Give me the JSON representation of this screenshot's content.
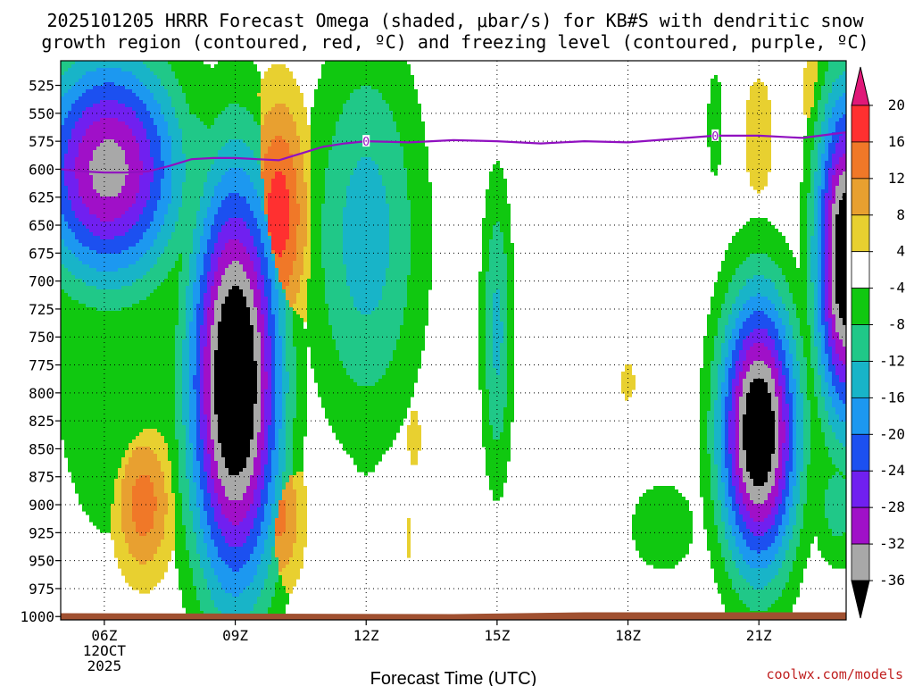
{
  "chart_data": {
    "type": "heatmap",
    "title_lines": [
      "2025101205 HRRR Forecast Omega (shaded, μbar/s) for KB#S with dendritic snow",
      "growth region (contoured, red, ºC) and freezing level (contoured, purple, ºC)"
    ],
    "xlabel": "Forecast Time (UTC)",
    "ylabel": "",
    "credit": "coolwx.com/models",
    "x_range_hours": [
      5,
      23
    ],
    "y_range_mb": [
      503,
      1003
    ],
    "y_ticks": [
      525,
      550,
      575,
      600,
      625,
      650,
      675,
      700,
      725,
      750,
      775,
      800,
      825,
      850,
      875,
      900,
      925,
      950,
      975,
      1000
    ],
    "x_ticks": [
      {
        "hour": 6,
        "label": "06Z",
        "sub1": "12OCT",
        "sub2": "2025"
      },
      {
        "hour": 9,
        "label": "09Z",
        "sub1": "",
        "sub2": ""
      },
      {
        "hour": 12,
        "label": "12Z",
        "sub1": "",
        "sub2": ""
      },
      {
        "hour": 15,
        "label": "15Z",
        "sub1": "",
        "sub2": ""
      },
      {
        "hour": 18,
        "label": "18Z",
        "sub1": "",
        "sub2": ""
      },
      {
        "hour": 21,
        "label": "21Z",
        "sub1": "",
        "sub2": ""
      }
    ],
    "colorbar": {
      "labels": [
        "20",
        "16",
        "12",
        "8",
        "4",
        "-4",
        "-8",
        "-12",
        "-16",
        "-20",
        "-24",
        "-28",
        "-32",
        "-36"
      ],
      "bins": [
        {
          "upper": 20,
          "lower": 16,
          "color": "#ff3030"
        },
        {
          "upper": 16,
          "lower": 12,
          "color": "#f07828"
        },
        {
          "upper": 12,
          "lower": 8,
          "color": "#e8a030"
        },
        {
          "upper": 8,
          "lower": 4,
          "color": "#e8d030"
        },
        {
          "upper": 4,
          "lower": -4,
          "color": "#ffffff"
        },
        {
          "upper": -4,
          "lower": -8,
          "color": "#10c810"
        },
        {
          "upper": -8,
          "lower": -12,
          "color": "#20c888"
        },
        {
          "upper": -12,
          "lower": -16,
          "color": "#18b4c8"
        },
        {
          "upper": -16,
          "lower": -20,
          "color": "#1c98f0"
        },
        {
          "upper": -20,
          "lower": -24,
          "color": "#1c50f0"
        },
        {
          "upper": -24,
          "lower": -28,
          "color": "#7020f0"
        },
        {
          "upper": -28,
          "lower": -32,
          "color": "#a010c8"
        },
        {
          "upper": -32,
          "lower": -36,
          "color": "#a8a8a8"
        }
      ],
      "top_arrow_color": "#e01878",
      "bottom_arrow_color": "#000000"
    },
    "omega_features": [
      {
        "time": 6.1,
        "pres": 600,
        "dt": 1.7,
        "dp": 105,
        "peak": -34,
        "kind": "ascent"
      },
      {
        "time": 7.5,
        "pres": 590,
        "dt": 2.3,
        "dp": 95,
        "peak": -10,
        "kind": "ascent"
      },
      {
        "time": 9.0,
        "pres": 790,
        "dt": 1.05,
        "dp": 190,
        "peak": -44,
        "kind": "ascent"
      },
      {
        "time": 8.7,
        "pres": 790,
        "dt": 1.8,
        "dp": 200,
        "peak": -8,
        "kind": "ascent"
      },
      {
        "time": 6.2,
        "pres": 760,
        "dt": 1.6,
        "dp": 200,
        "peak": -8,
        "kind": "ascent"
      },
      {
        "time": 12.0,
        "pres": 660,
        "dt": 1.35,
        "dp": 180,
        "peak": -14,
        "kind": "ascent"
      },
      {
        "time": 12.0,
        "pres": 540,
        "dt": 0.55,
        "dp": 60,
        "peak": -7,
        "kind": "ascent"
      },
      {
        "time": 12.0,
        "pres": 790,
        "dt": 0.8,
        "dp": 110,
        "peak": -7,
        "kind": "ascent"
      },
      {
        "time": 15.0,
        "pres": 745,
        "dt": 0.38,
        "dp": 140,
        "peak": -13,
        "kind": "ascent"
      },
      {
        "time": 18.8,
        "pres": 920,
        "dt": 0.85,
        "dp": 45,
        "peak": -8,
        "kind": "ascent"
      },
      {
        "time": 20.0,
        "pres": 560,
        "dt": 0.22,
        "dp": 60,
        "peak": -7,
        "kind": "ascent"
      },
      {
        "time": 21.0,
        "pres": 835,
        "dt": 0.9,
        "dp": 125,
        "peak": -42,
        "kind": "ascent"
      },
      {
        "time": 21.4,
        "pres": 840,
        "dt": 1.3,
        "dp": 175,
        "peak": -8,
        "kind": "ascent"
      },
      {
        "time": 23.0,
        "pres": 680,
        "dt": 0.7,
        "dp": 150,
        "peak": -42,
        "kind": "ascent"
      },
      {
        "time": 22.8,
        "pres": 900,
        "dt": 0.6,
        "dp": 60,
        "peak": -10,
        "kind": "ascent"
      },
      {
        "time": 10.0,
        "pres": 640,
        "dt": 0.7,
        "dp": 110,
        "peak": 18,
        "kind": "descent"
      },
      {
        "time": 9.8,
        "pres": 540,
        "dt": 0.45,
        "dp": 30,
        "peak": 8,
        "kind": "descent"
      },
      {
        "time": 10.0,
        "pres": 910,
        "dt": 0.6,
        "dp": 70,
        "peak": 13,
        "kind": "descent"
      },
      {
        "time": 6.9,
        "pres": 900,
        "dt": 0.7,
        "dp": 70,
        "peak": 14,
        "kind": "descent"
      },
      {
        "time": 13.1,
        "pres": 840,
        "dt": 0.22,
        "dp": 40,
        "peak": 6,
        "kind": "descent"
      },
      {
        "time": 13.0,
        "pres": 930,
        "dt": 0.12,
        "dp": 40,
        "peak": 5,
        "kind": "descent"
      },
      {
        "time": 18.0,
        "pres": 790,
        "dt": 0.22,
        "dp": 25,
        "peak": 6,
        "kind": "descent"
      },
      {
        "time": 21.0,
        "pres": 570,
        "dt": 0.5,
        "dp": 80,
        "peak": 6,
        "kind": "descent"
      },
      {
        "time": 22.2,
        "pres": 530,
        "dt": 0.3,
        "dp": 50,
        "peak": 6,
        "kind": "descent"
      }
    ],
    "freezing_level": {
      "color": "#9010c0",
      "label": "0",
      "label_hours": [
        12,
        20
      ],
      "time": [
        5.0,
        5.5,
        6.0,
        6.5,
        7.0,
        7.5,
        8.0,
        8.5,
        9.0,
        9.5,
        10.0,
        10.5,
        11.0,
        11.5,
        12.0,
        13.0,
        14.0,
        15.0,
        16.0,
        17.0,
        18.0,
        19.0,
        20.0,
        21.0,
        22.0,
        23.0
      ],
      "pressure": [
        600,
        602,
        603,
        603,
        602,
        597,
        591,
        590,
        590,
        591,
        592,
        586,
        580,
        577,
        575,
        576,
        574,
        575,
        577,
        575,
        576,
        573,
        570,
        570,
        572,
        567
      ]
    },
    "terrain": {
      "color": "#a05030",
      "surface_mb": 997
    }
  }
}
